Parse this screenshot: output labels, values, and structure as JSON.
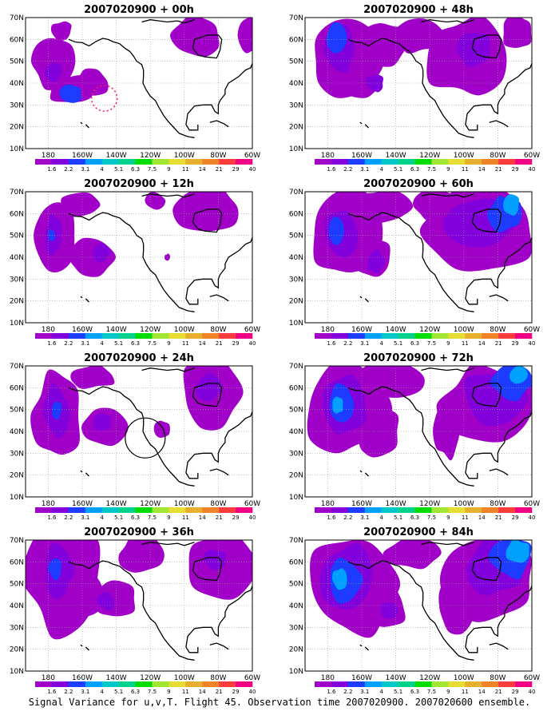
{
  "caption": "Signal Variance for u,v,T. Flight 45. Observation time 2007020900. 2007020600 ensemble.",
  "colors": {
    "levels": [
      "#a000c8",
      "#8200dc",
      "#1e3cff",
      "#00a0ff",
      "#00c8c8",
      "#00d28c",
      "#00dc00",
      "#a0e632",
      "#e6dc32",
      "#e6af2d",
      "#f08228",
      "#fa3c3c",
      "#f00082"
    ],
    "coast": "#000000",
    "marker": "#ff1e64"
  },
  "chart_data": {
    "type": "heatmap",
    "xlim": [
      "180",
      "60W"
    ],
    "ylim": [
      "10N",
      "70N"
    ],
    "x_tick_labels": [
      "180",
      "160W",
      "140W",
      "120W",
      "100W",
      "80W",
      "60W"
    ],
    "y_tick_labels": [
      "10N",
      "20N",
      "30N",
      "40N",
      "50N",
      "60N",
      "70N"
    ],
    "grid": true,
    "colorbar_labels": [
      "1.6",
      "2.2",
      "3.1",
      "4",
      "5.1",
      "6.3",
      "7.5",
      "9",
      "11",
      "14",
      "21",
      "29",
      "40"
    ],
    "panels": [
      {
        "title": "2007020900 + 00h",
        "lead_hours": 0,
        "column": "left",
        "row": 1,
        "annotation": "target circle (dotted) near 145W 30N"
      },
      {
        "title": "2007020900 + 12h",
        "lead_hours": 12,
        "column": "left",
        "row": 2
      },
      {
        "title": "2007020900 + 24h",
        "lead_hours": 24,
        "column": "left",
        "row": 3,
        "annotation": "verification circle near 122W 37N"
      },
      {
        "title": "2007020900 + 36h",
        "lead_hours": 36,
        "column": "left",
        "row": 4
      },
      {
        "title": "2007020900 + 48h",
        "lead_hours": 48,
        "column": "right",
        "row": 1
      },
      {
        "title": "2007020900 + 60h",
        "lead_hours": 60,
        "column": "right",
        "row": 2
      },
      {
        "title": "2007020900 + 72h",
        "lead_hours": 72,
        "column": "right",
        "row": 3
      },
      {
        "title": "2007020900 + 84h",
        "lead_hours": 84,
        "column": "right",
        "row": 4
      }
    ]
  }
}
